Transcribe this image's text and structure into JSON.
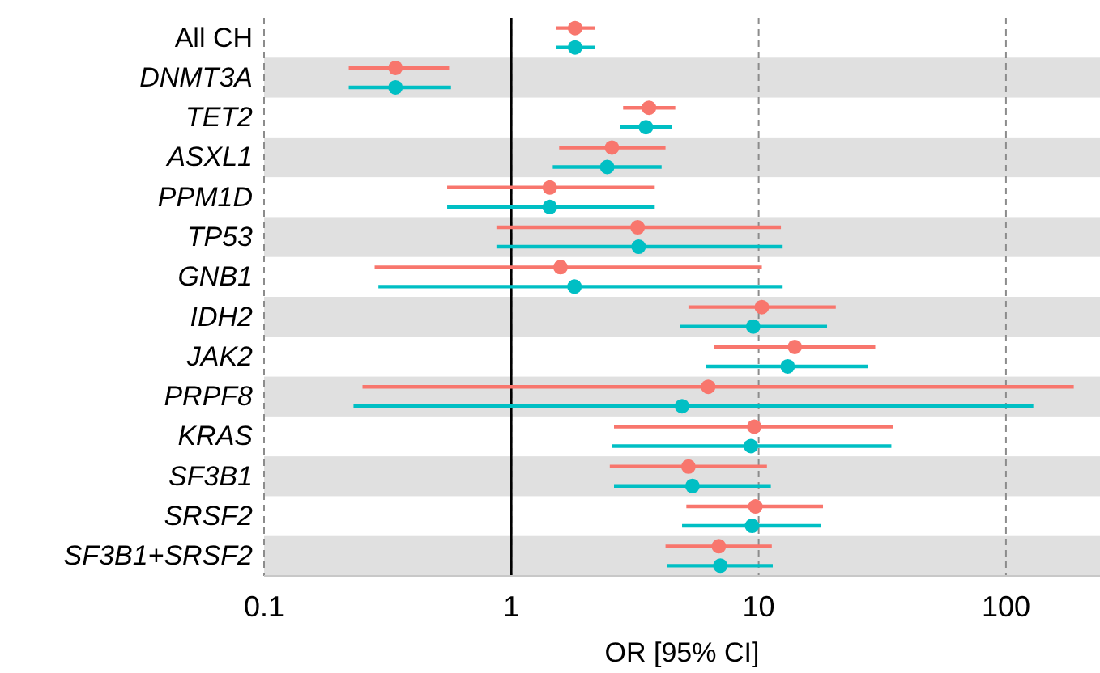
{
  "chart_data": {
    "type": "scatter",
    "orientation": "horizontal",
    "xlabel": "OR [95% CI]",
    "log": "x",
    "xlim": [
      0.1,
      240
    ],
    "xticks": [
      0.1,
      1,
      10,
      100
    ],
    "grid": "x",
    "marker": "circle",
    "categories": [
      "All CH",
      "DNMT3A",
      "TET2",
      "ASXL1",
      "PPM1D",
      "TP53",
      "GNB1",
      "IDH2",
      "JAK2",
      "PRPF8",
      "KRAS",
      "SF3B1",
      "SRSF2",
      "SF3B1+SRSF2"
    ],
    "ref_lines": [
      {
        "axis": "x",
        "value": 1,
        "color": "#000000",
        "line_style": "solid"
      }
    ],
    "series": [
      {
        "color": "#f8766d",
        "values": [
          1.81,
          0.34,
          3.6,
          2.55,
          1.43,
          3.24,
          1.58,
          10.3,
          14,
          6.25,
          9.6,
          5.2,
          9.7,
          6.9
        ],
        "errors": [
          [
            1.52,
            2.18
          ],
          [
            0.22,
            0.56
          ],
          [
            2.83,
            4.6
          ],
          [
            1.56,
            4.2
          ],
          [
            0.55,
            3.8
          ],
          [
            0.87,
            12.3
          ],
          [
            0.28,
            10.3
          ],
          [
            5.2,
            20.5
          ],
          [
            6.6,
            29.6
          ],
          [
            0.25,
            188
          ],
          [
            2.6,
            35
          ],
          [
            2.5,
            10.8
          ],
          [
            5.1,
            18.2
          ],
          [
            4.2,
            11.3
          ]
        ]
      },
      {
        "color": "#00bfc4",
        "values": [
          1.81,
          0.34,
          3.5,
          2.44,
          1.43,
          3.27,
          1.8,
          9.5,
          13.1,
          4.9,
          9.3,
          5.4,
          9.4,
          7.0
        ],
        "errors": [
          [
            1.52,
            2.17
          ],
          [
            0.22,
            0.57
          ],
          [
            2.75,
            4.47
          ],
          [
            1.47,
            4.05
          ],
          [
            0.55,
            3.8
          ],
          [
            0.87,
            12.5
          ],
          [
            0.29,
            12.5
          ],
          [
            4.8,
            18.9
          ],
          [
            6.1,
            27.6
          ],
          [
            0.23,
            129
          ],
          [
            2.55,
            34.4
          ],
          [
            2.6,
            11.2
          ],
          [
            4.9,
            17.8
          ],
          [
            4.25,
            11.4
          ]
        ]
      }
    ]
  }
}
